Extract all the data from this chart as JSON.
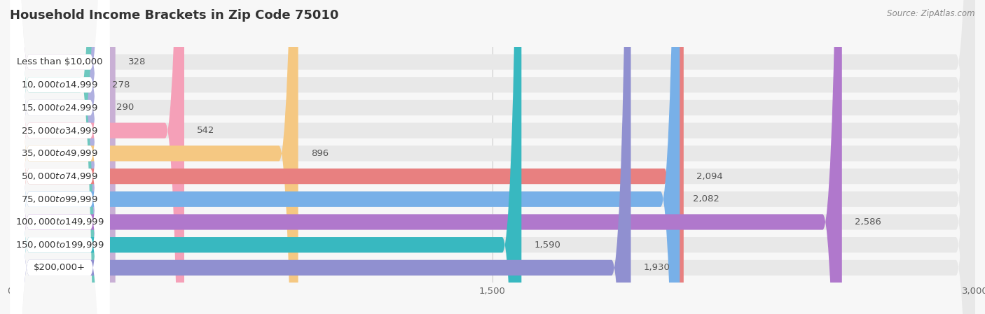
{
  "title": "Household Income Brackets in Zip Code 75010",
  "source": "Source: ZipAtlas.com",
  "categories": [
    "Less than $10,000",
    "$10,000 to $14,999",
    "$15,000 to $24,999",
    "$25,000 to $34,999",
    "$35,000 to $49,999",
    "$50,000 to $74,999",
    "$75,000 to $99,999",
    "$100,000 to $149,999",
    "$150,000 to $199,999",
    "$200,000+"
  ],
  "values": [
    328,
    278,
    290,
    542,
    896,
    2094,
    2082,
    2586,
    1590,
    1930
  ],
  "bar_colors": [
    "#c9b0d5",
    "#6dc8bf",
    "#b0b0e0",
    "#f5a0b8",
    "#f5c882",
    "#e88080",
    "#78b0e8",
    "#b078cc",
    "#38b8c0",
    "#9090d0"
  ],
  "background_color": "#f7f7f7",
  "bar_bg_color": "#e8e8e8",
  "label_bg_color": "#ffffff",
  "xlim": [
    0,
    3000
  ],
  "xticks": [
    0,
    1500,
    3000
  ],
  "title_fontsize": 13,
  "label_fontsize": 9.5,
  "value_fontsize": 9.5,
  "source_fontsize": 8.5
}
